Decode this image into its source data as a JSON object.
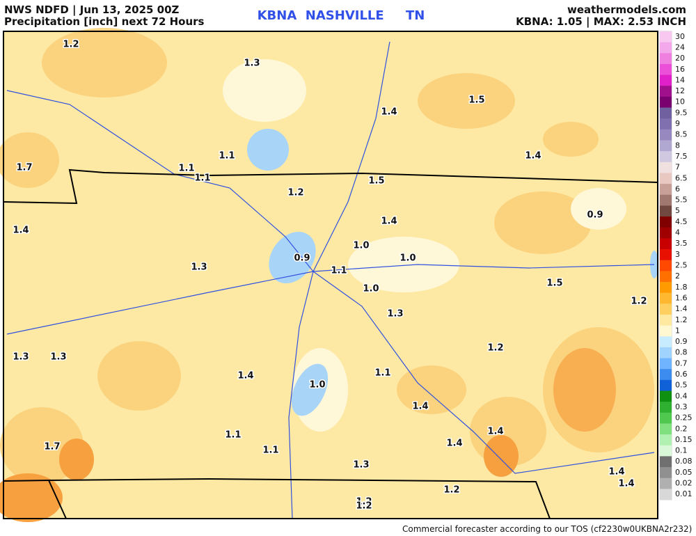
{
  "header": {
    "left_line1": "NWS NDFD | Jun 13, 2025 00Z",
    "left_line2": "Precipitation [inch] next 72 Hours",
    "center": "KBNA  NASHVILLE     TN",
    "right_line1": "weathermodels.com",
    "right_line2": "KBNA: 1.05 | MAX: 2.53 INCH"
  },
  "map": {
    "labels": [
      "1.2",
      "1.3",
      "1.5",
      "1.4",
      "1.1",
      "1.4",
      "1.7",
      "1.1",
      "1.1",
      "1.5",
      "1.2",
      "0.9",
      "1.4",
      "1.4",
      "1.0",
      "0.9",
      "1.0",
      "1.3",
      "1.1",
      "1.5",
      "1.0",
      "1.2",
      "1.3",
      "1.2",
      "1.3",
      "1.3",
      "1.1",
      "1.4",
      "1.0",
      "1.4",
      "1.4",
      "1.7",
      "1.1",
      "1.4",
      "1.1",
      "1.3",
      "1.4",
      "1.4",
      "1.2",
      "1.2",
      "1.2"
    ]
  },
  "legend": {
    "items": [
      {
        "label": "30",
        "color": "#f8c8f0"
      },
      {
        "label": "24",
        "color": "#f4a8ec"
      },
      {
        "label": "20",
        "color": "#f080e0"
      },
      {
        "label": "16",
        "color": "#ec50d8"
      },
      {
        "label": "14",
        "color": "#e020c8"
      },
      {
        "label": "12",
        "color": "#a0108c"
      },
      {
        "label": "10",
        "color": "#7a0070"
      },
      {
        "label": "9.5",
        "color": "#7060a0"
      },
      {
        "label": "9",
        "color": "#8070b0"
      },
      {
        "label": "8.5",
        "color": "#9888c0"
      },
      {
        "label": "8",
        "color": "#b0a8d0"
      },
      {
        "label": "7.5",
        "color": "#d0c8e0"
      },
      {
        "label": "7",
        "color": "#f0e0e0"
      },
      {
        "label": "6.5",
        "color": "#e8c8c0"
      },
      {
        "label": "6",
        "color": "#c8a098"
      },
      {
        "label": "5.5",
        "color": "#a07870"
      },
      {
        "label": "5",
        "color": "#704840"
      },
      {
        "label": "4.5",
        "color": "#800000"
      },
      {
        "label": "4",
        "color": "#a00000"
      },
      {
        "label": "3.5",
        "color": "#c80000"
      },
      {
        "label": "3",
        "color": "#e81000"
      },
      {
        "label": "2.5",
        "color": "#ff4800"
      },
      {
        "label": "2",
        "color": "#ff7000"
      },
      {
        "label": "1.8",
        "color": "#ff9a00"
      },
      {
        "label": "1.6",
        "color": "#ffb830"
      },
      {
        "label": "1.4",
        "color": "#ffd060"
      },
      {
        "label": "1.2",
        "color": "#ffe8a0"
      },
      {
        "label": "1",
        "color": "#fff8d0"
      },
      {
        "label": "0.9",
        "color": "#c8ecff"
      },
      {
        "label": "0.8",
        "color": "#a0d4ff"
      },
      {
        "label": "0.7",
        "color": "#70b4ff"
      },
      {
        "label": "0.6",
        "color": "#3c8cf0"
      },
      {
        "label": "0.5",
        "color": "#1060d8"
      },
      {
        "label": "0.4",
        "color": "#109010"
      },
      {
        "label": "0.3",
        "color": "#30b030"
      },
      {
        "label": "0.25",
        "color": "#50c850"
      },
      {
        "label": "0.2",
        "color": "#80e080"
      },
      {
        "label": "0.15",
        "color": "#b0f0b0"
      },
      {
        "label": "0.1",
        "color": "#d8f8d8"
      },
      {
        "label": "0.08",
        "color": "#707070"
      },
      {
        "label": "0.05",
        "color": "#909090"
      },
      {
        "label": "0.02",
        "color": "#b0b0b0"
      },
      {
        "label": "0.01",
        "color": "#d8d8d8"
      }
    ]
  },
  "footer": "Commercial forecaster according to our TOS (cf2230w0UKBNA2r232)"
}
